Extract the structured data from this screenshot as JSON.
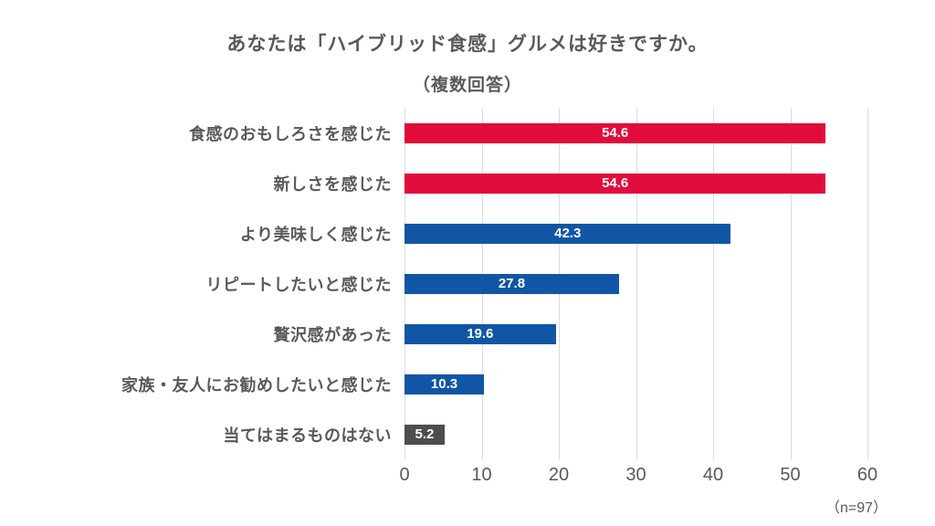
{
  "title": {
    "line1": "あなたは「ハイブリッド食感」グルメは好きですか。",
    "line2": "（複数回答）"
  },
  "note": "（n=97）",
  "colors": {
    "red": "#E00D3C",
    "blue": "#1056A5",
    "gray": "#4D4D4D",
    "grid": "#DCDCDC",
    "text": "#595959",
    "value_label": "#FFFFFF"
  },
  "chart_data": {
    "type": "bar",
    "orientation": "horizontal",
    "title": "あなたは「ハイブリッド食感」グルメは好きですか。（複数回答）",
    "categories": [
      "食感のおもしろさを感じた",
      "新しさを感じた",
      "より美味しく感じた",
      "リピートしたいと感じた",
      "贅沢感があった",
      "家族・友人にお勧めしたいと感じた",
      "当てはまるものはない"
    ],
    "values": [
      54.6,
      54.6,
      42.3,
      27.8,
      19.6,
      10.3,
      5.2
    ],
    "bar_colors": [
      "#E00D3C",
      "#E00D3C",
      "#1056A5",
      "#1056A5",
      "#1056A5",
      "#1056A5",
      "#4D4D4D"
    ],
    "xlim": [
      0,
      60
    ],
    "x_ticks": [
      0,
      10,
      20,
      30,
      40,
      50,
      60
    ],
    "xlabel": "",
    "ylabel": "",
    "grid": true,
    "legend_position": "none",
    "sample_note": "（n=97）"
  }
}
